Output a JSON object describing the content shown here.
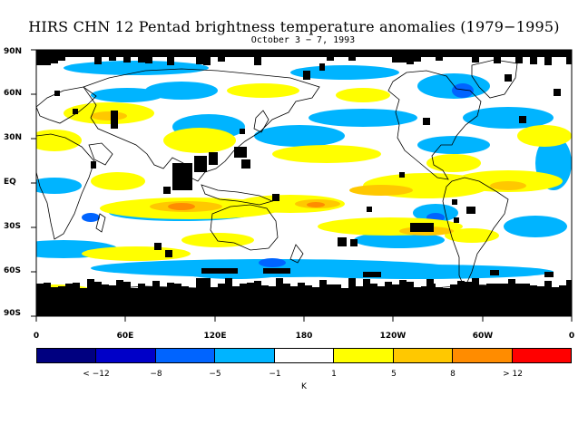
{
  "title": "HIRS CHN 12 Pentad brightness temperature anomalies (1979−1995)",
  "subtitle": "October 3 − 7, 1993",
  "lat_labels": [
    "90N",
    "60N",
    "30N",
    "EQ",
    "30S",
    "60S",
    "90S"
  ],
  "lon_labels": [
    "0",
    "60E",
    "120E",
    "180",
    "120W",
    "60W",
    "0"
  ],
  "colorbar": {
    "colors": [
      "#000080",
      "#0000c8",
      "#0064ff",
      "#00b4ff",
      "#ffffff",
      "#ffff00",
      "#ffc800",
      "#ff8c00",
      "#ff0000"
    ],
    "labels": [
      "< −12",
      "−8",
      "−5",
      "−1",
      "1",
      "5",
      "8",
      "> 12"
    ],
    "unit": "K"
  },
  "colors": {
    "missing": "#000000",
    "coast": "#000000"
  }
}
